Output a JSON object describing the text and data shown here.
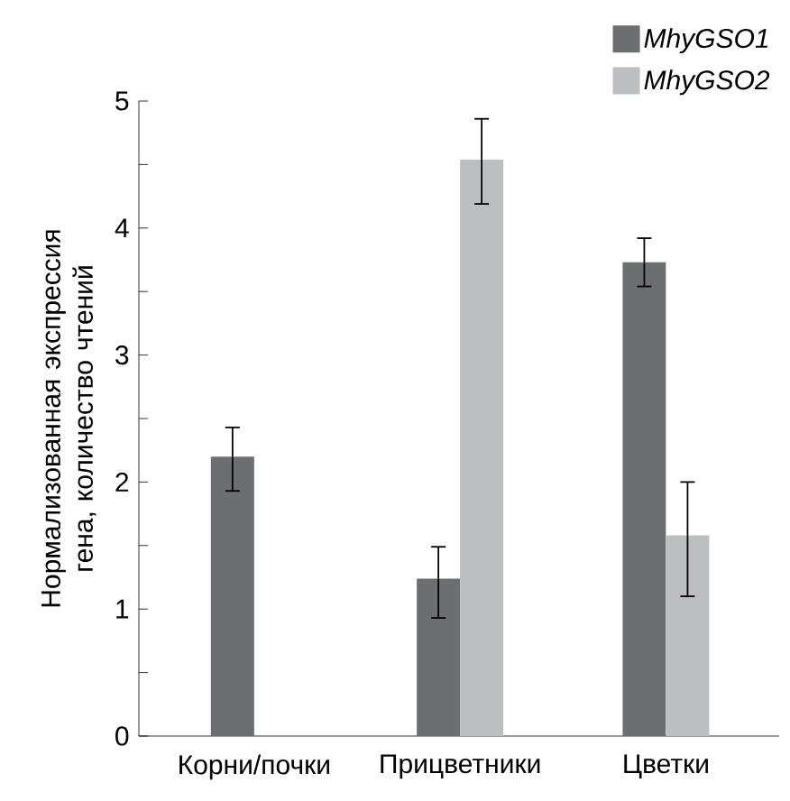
{
  "chart_data": {
    "type": "bar",
    "ylabel": "Нормализованная экспрессия гена, количество чтений",
    "categories": [
      "Корни/почки",
      "Прицветники",
      "Цветки"
    ],
    "series": [
      {
        "name": "MhyGSO1",
        "color": "#6d6e71",
        "values": [
          2.2,
          1.24,
          3.73
        ],
        "errors": [
          [
            1.93,
            2.43
          ],
          [
            0.93,
            1.49
          ],
          [
            3.54,
            3.92
          ]
        ]
      },
      {
        "name": "MhyGSO2",
        "color": "#bcbec0",
        "values": [
          null,
          4.54,
          1.58
        ],
        "errors": [
          null,
          [
            4.19,
            4.86
          ],
          [
            1.1,
            2.0
          ]
        ]
      }
    ],
    "ylim": [
      0,
      5
    ],
    "yticks": [
      0,
      {
        "value": 0.5,
        "label": null
      },
      1,
      {
        "value": 1.5,
        "label": null
      },
      2,
      {
        "value": 2.5,
        "label": null
      },
      3,
      {
        "value": 3.5,
        "label": null
      },
      4,
      {
        "value": 4.5,
        "label": null
      },
      5
    ],
    "grid": false,
    "legend": "top right"
  }
}
